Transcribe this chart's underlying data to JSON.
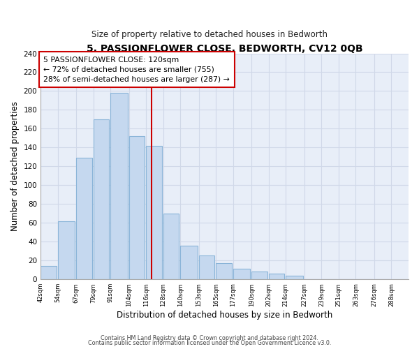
{
  "title": "5, PASSIONFLOWER CLOSE, BEDWORTH, CV12 0QB",
  "subtitle": "Size of property relative to detached houses in Bedworth",
  "xlabel": "Distribution of detached houses by size in Bedworth",
  "ylabel": "Number of detached properties",
  "bar_left_edges": [
    42,
    54,
    67,
    79,
    91,
    104,
    116,
    128,
    140,
    153,
    165,
    177,
    190,
    202,
    214,
    227,
    239,
    251,
    263,
    276
  ],
  "bar_heights": [
    14,
    62,
    129,
    170,
    198,
    152,
    142,
    70,
    36,
    25,
    17,
    11,
    8,
    6,
    4,
    0,
    0,
    0,
    0,
    0
  ],
  "bar_widths": [
    11,
    12,
    11,
    11,
    12,
    11,
    11,
    11,
    12,
    11,
    11,
    12,
    11,
    11,
    12,
    11,
    11,
    11,
    12,
    11
  ],
  "tick_labels": [
    "42sqm",
    "54sqm",
    "67sqm",
    "79sqm",
    "91sqm",
    "104sqm",
    "116sqm",
    "128sqm",
    "140sqm",
    "153sqm",
    "165sqm",
    "177sqm",
    "190sqm",
    "202sqm",
    "214sqm",
    "227sqm",
    "239sqm",
    "251sqm",
    "263sqm",
    "276sqm",
    "288sqm"
  ],
  "bar_color": "#c5d8ef",
  "bar_edge_color": "#8ab4d8",
  "property_line_x": 120,
  "property_line_color": "#cc0000",
  "ylim": [
    0,
    240
  ],
  "yticks": [
    0,
    20,
    40,
    60,
    80,
    100,
    120,
    140,
    160,
    180,
    200,
    220,
    240
  ],
  "annotation_title": "5 PASSIONFLOWER CLOSE: 120sqm",
  "annotation_line1": "← 72% of detached houses are smaller (755)",
  "annotation_line2": "28% of semi-detached houses are larger (287) →",
  "annotation_box_color": "#ffffff",
  "annotation_box_edge": "#cc0000",
  "footer1": "Contains HM Land Registry data © Crown copyright and database right 2024.",
  "footer2": "Contains public sector information licensed under the Open Government Licence v3.0.",
  "grid_color": "#d0d8e8",
  "background_color": "#ffffff",
  "plot_bg_color": "#e8eef8"
}
